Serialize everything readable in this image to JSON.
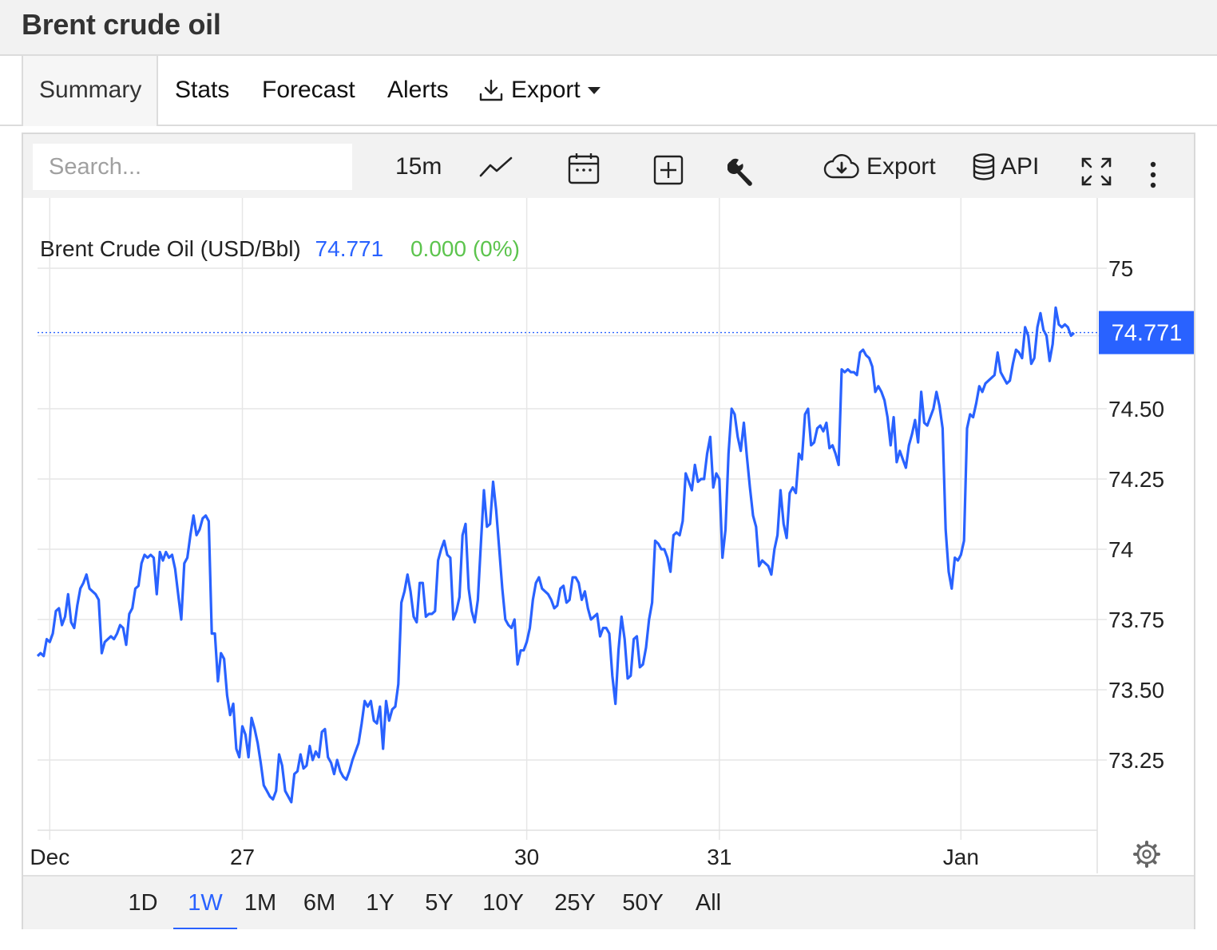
{
  "page": {
    "title": "Brent crude oil"
  },
  "tabs": [
    {
      "label": "Summary"
    },
    {
      "label": "Stats"
    },
    {
      "label": "Forecast"
    },
    {
      "label": "Alerts"
    },
    {
      "label": "Export"
    }
  ],
  "toolbar": {
    "search_placeholder": "Search...",
    "interval": "15m",
    "export_label": "Export",
    "api_label": "API"
  },
  "legend": {
    "name": "Brent Crude Oil (USD/Bbl)",
    "price": "74.771",
    "change": "0.000 (0%)"
  },
  "last_price_label": "74.771",
  "ranges": [
    "1D",
    "1W",
    "1M",
    "6M",
    "1Y",
    "5Y",
    "10Y",
    "25Y",
    "50Y",
    "All"
  ],
  "active_range": "1W",
  "colors": {
    "line": "#2962ff",
    "up": "#5cc44d",
    "badge": "#2962ff"
  },
  "chart_data": {
    "type": "line",
    "series": [
      {
        "name": "Brent Crude Oil (USD/Bbl)",
        "values": [
          73.62,
          73.63,
          73.62,
          73.68,
          73.67,
          73.7,
          73.78,
          73.79,
          73.73,
          73.76,
          73.84,
          73.74,
          73.72,
          73.8,
          73.86,
          73.88,
          73.91,
          73.86,
          73.85,
          73.84,
          73.82,
          73.63,
          73.67,
          73.68,
          73.69,
          73.68,
          73.7,
          73.73,
          73.72,
          73.66,
          73.77,
          73.79,
          73.86,
          73.87,
          73.95,
          73.98,
          73.97,
          73.98,
          73.97,
          73.84,
          73.99,
          73.96,
          73.99,
          73.97,
          73.98,
          73.93,
          73.84,
          73.75,
          73.95,
          73.97,
          74.05,
          74.12,
          74.05,
          74.07,
          74.11,
          74.12,
          74.1,
          73.7,
          73.7,
          73.53,
          73.63,
          73.61,
          73.48,
          73.41,
          73.45,
          73.29,
          73.26,
          73.37,
          73.34,
          73.26,
          73.4,
          73.36,
          73.31,
          73.24,
          73.16,
          73.14,
          73.12,
          73.11,
          73.14,
          73.27,
          73.23,
          73.14,
          73.12,
          73.1,
          73.2,
          73.21,
          73.27,
          73.22,
          73.23,
          73.3,
          73.25,
          73.28,
          73.26,
          73.35,
          73.36,
          73.26,
          73.24,
          73.2,
          73.25,
          73.21,
          73.19,
          73.18,
          73.21,
          73.25,
          73.28,
          73.31,
          73.38,
          73.46,
          73.44,
          73.46,
          73.39,
          73.38,
          73.44,
          73.29,
          73.46,
          73.39,
          73.43,
          73.44,
          73.52,
          73.81,
          73.85,
          73.91,
          73.85,
          73.76,
          73.74,
          73.88,
          73.88,
          73.76,
          73.77,
          73.77,
          73.78,
          73.96,
          74.0,
          74.03,
          73.98,
          73.97,
          73.75,
          73.78,
          73.83,
          74.05,
          74.09,
          73.86,
          73.78,
          73.74,
          73.82,
          74.02,
          74.21,
          74.08,
          74.09,
          74.24,
          74.14,
          74.0,
          73.86,
          73.75,
          73.73,
          73.72,
          73.75,
          73.59,
          73.64,
          73.64,
          73.67,
          73.72,
          73.82,
          73.88,
          73.9,
          73.86,
          73.85,
          73.84,
          73.82,
          73.79,
          73.8,
          73.86,
          73.87,
          73.81,
          73.82,
          73.9,
          73.9,
          73.88,
          73.82,
          73.85,
          73.79,
          73.75,
          73.76,
          73.77,
          73.69,
          73.72,
          73.72,
          73.7,
          73.55,
          73.45,
          73.64,
          73.76,
          73.68,
          73.54,
          73.55,
          73.68,
          73.69,
          73.58,
          73.59,
          73.65,
          73.75,
          73.81,
          74.03,
          74.02,
          74.0,
          74.0,
          73.97,
          73.92,
          74.05,
          74.06,
          74.05,
          74.1,
          74.27,
          74.24,
          74.21,
          74.3,
          74.24,
          74.25,
          74.25,
          74.34,
          74.4,
          74.22,
          74.27,
          74.25,
          73.97,
          74.07,
          74.34,
          74.5,
          74.48,
          74.4,
          74.35,
          74.45,
          74.33,
          74.22,
          74.12,
          74.08,
          73.94,
          73.96,
          73.95,
          73.94,
          73.91,
          74.0,
          74.05,
          74.21,
          74.09,
          74.04,
          74.2,
          74.22,
          74.2,
          74.34,
          74.32,
          74.48,
          74.5,
          74.37,
          74.38,
          74.43,
          74.44,
          74.42,
          74.45,
          74.36,
          74.37,
          74.34,
          74.3,
          74.64,
          74.63,
          74.64,
          74.63,
          74.63,
          74.62,
          74.7,
          74.71,
          74.69,
          74.68,
          74.65,
          74.56,
          74.58,
          74.56,
          74.53,
          74.47,
          74.37,
          74.47,
          74.31,
          74.35,
          74.32,
          74.29,
          74.37,
          74.41,
          74.46,
          74.38,
          74.56,
          74.45,
          74.44,
          74.47,
          74.5,
          74.56,
          74.51,
          74.43,
          74.07,
          73.92,
          73.86,
          73.97,
          73.96,
          73.98,
          74.03,
          74.43,
          74.48,
          74.47,
          74.52,
          74.58,
          74.56,
          74.59,
          74.6,
          74.61,
          74.62,
          74.7,
          74.63,
          74.61,
          74.59,
          74.6,
          74.66,
          74.71,
          74.7,
          74.68,
          74.79,
          74.76,
          74.66,
          74.68,
          74.79,
          74.84,
          74.78,
          74.76,
          74.67,
          74.73,
          74.86,
          74.8,
          74.79,
          74.8,
          74.79,
          74.76,
          74.77
        ]
      }
    ],
    "xticks": [
      {
        "label": "Dec",
        "index": 4
      },
      {
        "label": "27",
        "index": 67
      },
      {
        "label": "30",
        "index": 160
      },
      {
        "label": "31",
        "index": 223
      },
      {
        "label": "Jan",
        "index": 302
      }
    ],
    "yticks": [
      {
        "label": "75",
        "value": 75.0
      },
      {
        "label": "74.50",
        "value": 74.5
      },
      {
        "label": "74.25",
        "value": 74.25
      },
      {
        "label": "74",
        "value": 74.0
      },
      {
        "label": "73.75",
        "value": 73.75
      },
      {
        "label": "73.50",
        "value": 73.5
      },
      {
        "label": "73.25",
        "value": 73.25
      }
    ],
    "ylim": [
      73.0,
      75.25
    ],
    "last_value": 74.771,
    "grid": true
  }
}
